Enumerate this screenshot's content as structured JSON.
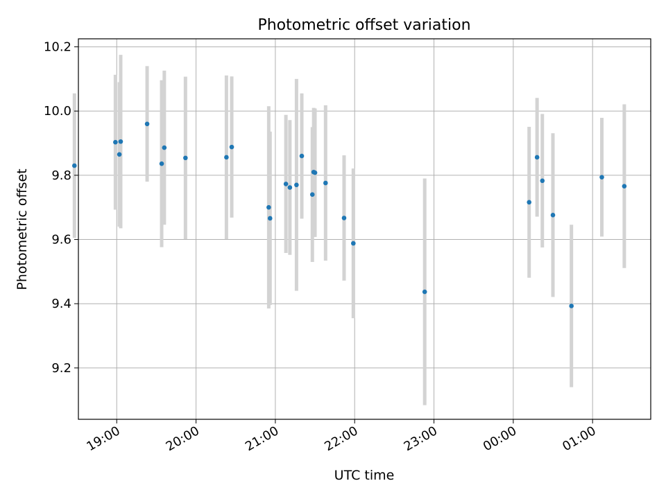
{
  "chart_data": {
    "type": "scatter",
    "title": "Photometric offset variation",
    "xlabel": "UTC time",
    "ylabel": "Photometric offset",
    "x_tick_labels": [
      "19:00",
      "20:00",
      "21:00",
      "22:00",
      "23:00",
      "00:00",
      "01:00"
    ],
    "y_tick_labels": [
      "9.2",
      "9.4",
      "9.6",
      "9.8",
      "10.0",
      "10.2"
    ],
    "x_ticks": [
      "19:00",
      "20:00",
      "21:00",
      "22:00",
      "23:00",
      "00:00",
      "01:00"
    ],
    "y_ticks": [
      9.2,
      9.4,
      9.6,
      9.8,
      10.0,
      10.2
    ],
    "xlim": [
      "18:31",
      "01:44"
    ],
    "ylim": [
      9.04,
      10.225
    ],
    "grid": true,
    "colors": {
      "points": "#1f77b4",
      "errorbars": "#d3d3d3",
      "grid": "#b0b0b0"
    },
    "points": [
      {
        "t": "18:28",
        "y": 9.83,
        "err": 0.225
      },
      {
        "t": "18:59",
        "y": 9.903,
        "err": 0.21
      },
      {
        "t": "19:02",
        "y": 9.865,
        "err": 0.225
      },
      {
        "t": "19:03",
        "y": 9.905,
        "err": 0.27
      },
      {
        "t": "19:23",
        "y": 9.96,
        "err": 0.18
      },
      {
        "t": "19:34",
        "y": 9.836,
        "err": 0.26
      },
      {
        "t": "19:36",
        "y": 9.886,
        "err": 0.24
      },
      {
        "t": "19:52",
        "y": 9.854,
        "err": 0.253
      },
      {
        "t": "20:23",
        "y": 9.856,
        "err": 0.255
      },
      {
        "t": "20:27",
        "y": 9.888,
        "err": 0.22
      },
      {
        "t": "20:55",
        "y": 9.7,
        "err": 0.315
      },
      {
        "t": "20:56",
        "y": 9.666,
        "err": 0.27
      },
      {
        "t": "21:08",
        "y": 9.773,
        "err": 0.215
      },
      {
        "t": "21:11",
        "y": 9.762,
        "err": 0.21
      },
      {
        "t": "21:16",
        "y": 9.77,
        "err": 0.33
      },
      {
        "t": "21:20",
        "y": 9.86,
        "err": 0.195
      },
      {
        "t": "21:28",
        "y": 9.74,
        "err": 0.21
      },
      {
        "t": "21:29",
        "y": 9.81,
        "err": 0.2
      },
      {
        "t": "21:30",
        "y": 9.808,
        "err": 0.2
      },
      {
        "t": "21:38",
        "y": 9.776,
        "err": 0.242
      },
      {
        "t": "21:52",
        "y": 9.667,
        "err": 0.195
      },
      {
        "t": "21:59",
        "y": 9.588,
        "err": 0.233
      },
      {
        "t": "22:53",
        "y": 9.437,
        "err": 0.353
      },
      {
        "t": "00:12",
        "y": 9.716,
        "err": 0.235
      },
      {
        "t": "00:18",
        "y": 9.856,
        "err": 0.185
      },
      {
        "t": "00:22",
        "y": 9.783,
        "err": 0.208
      },
      {
        "t": "00:30",
        "y": 9.676,
        "err": 0.255
      },
      {
        "t": "00:44",
        "y": 9.393,
        "err": 0.253
      },
      {
        "t": "01:07",
        "y": 9.794,
        "err": 0.185
      },
      {
        "t": "01:24",
        "y": 9.766,
        "err": 0.255
      }
    ]
  }
}
